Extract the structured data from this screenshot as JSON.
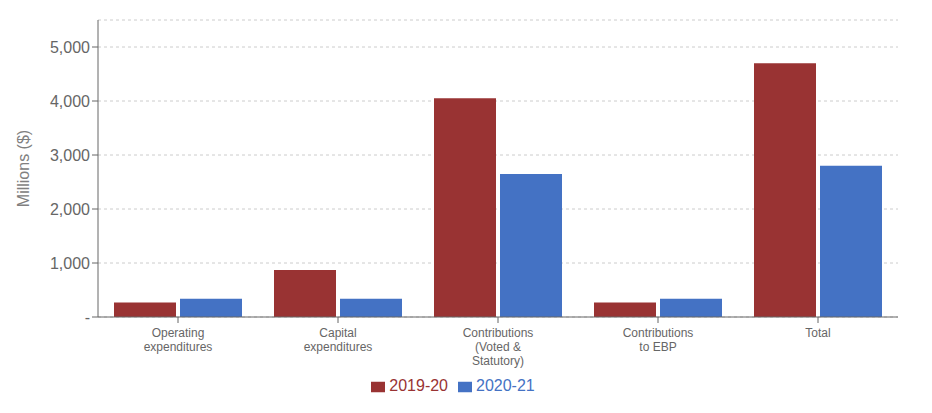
{
  "chart_data": {
    "type": "bar",
    "categories": [
      "Operating\nexpenditures",
      "Capital\nexpenditures",
      "Contributions\n(Voted &\nStatutory)",
      "Contributions\nto EBP",
      "Total"
    ],
    "series": [
      {
        "name": "2019-20",
        "color": "#993333",
        "values": [
          270,
          870,
          4050,
          270,
          4700
        ]
      },
      {
        "name": "2020-21",
        "color": "#4472C4",
        "values": [
          340,
          340,
          2650,
          340,
          2800
        ]
      }
    ],
    "ylabel": "Millions ($)",
    "ylim": [
      0,
      5500
    ],
    "yticks": [
      {
        "value": 0,
        "label": "-"
      },
      {
        "value": 1000,
        "label": "1,000"
      },
      {
        "value": 2000,
        "label": "2,000"
      },
      {
        "value": 3000,
        "label": "3,000"
      },
      {
        "value": 4000,
        "label": "4,000"
      },
      {
        "value": 5000,
        "label": "5,000"
      }
    ],
    "grid": true,
    "legend": "bottom"
  }
}
